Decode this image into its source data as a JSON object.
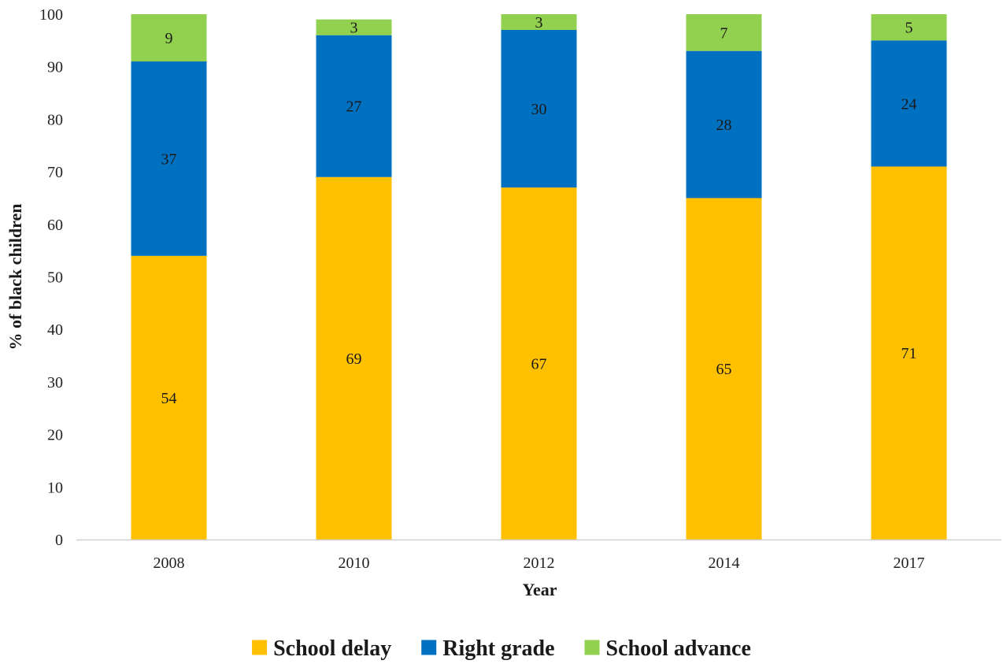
{
  "chart_data": {
    "type": "bar",
    "stacked": true,
    "categories": [
      "2008",
      "2010",
      "2012",
      "2014",
      "2017"
    ],
    "series": [
      {
        "name": "School delay",
        "color": "#FFC000",
        "values": [
          54,
          69,
          67,
          65,
          71
        ]
      },
      {
        "name": "Right grade",
        "color": "#0070C0",
        "values": [
          37,
          27,
          30,
          28,
          24
        ]
      },
      {
        "name": "School advance",
        "color": "#92D050",
        "values": [
          9,
          3,
          3,
          7,
          5
        ]
      }
    ],
    "xlabel": "Year",
    "ylabel": "% of black children",
    "ylim": [
      0,
      100
    ],
    "yticks": [
      0,
      10,
      20,
      30,
      40,
      50,
      60,
      70,
      80,
      90,
      100
    ],
    "grid": false,
    "legend_position": "bottom"
  }
}
